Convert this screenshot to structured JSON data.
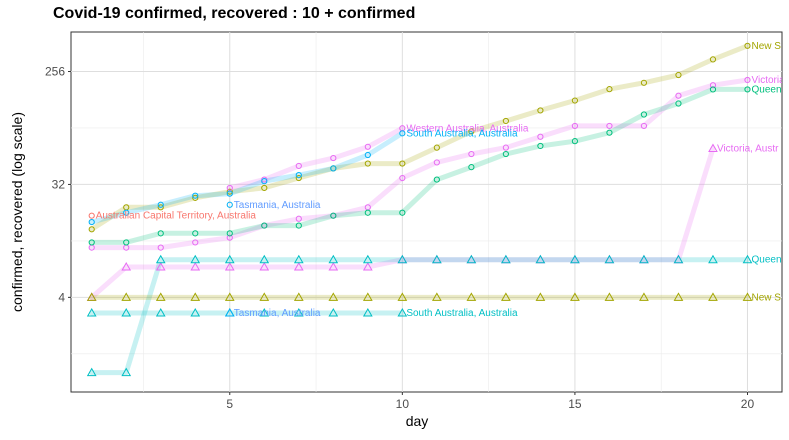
{
  "chart_data": {
    "type": "line",
    "title": "Covid-19 confirmed, recovered : 10 + confirmed",
    "xlabel": "day",
    "ylabel": "confirmed, recovered (log scale)",
    "x_ticks": [
      5,
      10,
      15,
      20
    ],
    "y_ticks": [
      4,
      32,
      256
    ],
    "y_scale": "log2",
    "xlim": [
      0.4,
      21
    ],
    "ylim": [
      0.7,
      530
    ],
    "grid": true,
    "legend": "none",
    "series": [
      {
        "name": "New South Wales, Australia",
        "label": "New S",
        "metric": "confirmed",
        "color": "#A3A500",
        "marker": "circle",
        "x": [
          1,
          2,
          3,
          4,
          5,
          6,
          7,
          8,
          9,
          10,
          11,
          12,
          13,
          14,
          15,
          16,
          17,
          18,
          19,
          20
        ],
        "y": [
          14,
          21,
          21,
          25,
          28,
          30,
          36,
          43,
          47,
          47,
          63,
          85,
          103,
          125,
          150,
          185,
          208,
          240,
          320,
          411
        ]
      },
      {
        "name": "Victoria, Australia",
        "label": "Victoria, Austr",
        "metric": "confirmed",
        "color": "#E76BF3",
        "marker": "circle",
        "x": [
          1,
          2,
          3,
          4,
          5,
          6,
          7,
          8,
          9,
          10,
          11,
          12,
          13,
          14,
          15,
          16,
          17,
          18,
          19,
          20
        ],
        "y": [
          10,
          10,
          10,
          11,
          12,
          15,
          17,
          18,
          21,
          36,
          48,
          56,
          63,
          77,
          94,
          94,
          94,
          164,
          199,
          219
        ]
      },
      {
        "name": "Queensland, Australia",
        "label": "Queen",
        "metric": "confirmed",
        "color": "#00BF7D",
        "marker": "circle",
        "x": [
          1,
          2,
          3,
          4,
          5,
          6,
          7,
          8,
          9,
          10,
          11,
          12,
          13,
          14,
          15,
          16,
          17,
          18,
          19,
          20
        ],
        "y": [
          11,
          11,
          13,
          13,
          13,
          15,
          15,
          18,
          19,
          19,
          35,
          44,
          56,
          65,
          71,
          83,
          116,
          142,
          184,
          184
        ]
      },
      {
        "name": "Western Australia, Australia",
        "label": "Western Australia, Australia",
        "metric": "confirmed",
        "color": "#E76BF3",
        "marker": "circle",
        "x": [
          5,
          6,
          7,
          8,
          9,
          10
        ],
        "y": [
          30,
          35,
          45,
          52,
          64,
          90
        ]
      },
      {
        "name": "South Australia, Australia",
        "label": "South Australia, Australia",
        "metric": "confirmed",
        "color": "#00B0F6",
        "marker": "circle",
        "x": [
          1,
          2,
          3,
          4,
          5,
          6,
          7,
          8,
          9,
          10
        ],
        "y": [
          16,
          19,
          22,
          26,
          27,
          34,
          38,
          43,
          55,
          82
        ]
      },
      {
        "name": "Tasmania, Australia",
        "label": "Tasmania, Australia",
        "metric": "confirmed",
        "color": "#00B0F6",
        "marker": "circle",
        "x": [
          5
        ],
        "y": [
          22
        ]
      },
      {
        "name": "Australian Capital Territory, Australia",
        "label": "Australian Capital Territory, Australia",
        "metric": "confirmed",
        "color": "#F8766D",
        "marker": "circle",
        "x": [
          1
        ],
        "y": [
          18
        ]
      },
      {
        "name": "Victoria, Australia",
        "label": "Victoria, Austr",
        "metric": "recovered",
        "color": "#E76BF3",
        "marker": "triangle",
        "x": [
          1,
          2,
          3,
          4,
          5,
          6,
          7,
          8,
          9,
          10,
          11,
          12,
          13,
          14,
          15,
          16,
          17,
          18,
          19,
          20
        ],
        "y": [
          4,
          7,
          7,
          7,
          7,
          7,
          7,
          7,
          7,
          8,
          8,
          8,
          8,
          8,
          8,
          8,
          8,
          8,
          62,
          null
        ]
      },
      {
        "name": "Queensland, Australia",
        "label": "Queen",
        "metric": "recovered",
        "color": "#00BFC4",
        "marker": "triangle",
        "x": [
          1,
          2,
          3,
          4,
          5,
          6,
          7,
          8,
          9,
          10,
          11,
          12,
          13,
          14,
          15,
          16,
          17,
          18,
          19,
          20
        ],
        "y": [
          1,
          1,
          8,
          8,
          8,
          8,
          8,
          8,
          8,
          8,
          8,
          8,
          8,
          8,
          8,
          8,
          8,
          8,
          8,
          8
        ]
      },
      {
        "name": "New South Wales, Australia",
        "label": "New S",
        "metric": "recovered",
        "color": "#A3A500",
        "marker": "triangle",
        "x": [
          1,
          2,
          3,
          4,
          5,
          6,
          7,
          8,
          9,
          10,
          11,
          12,
          13,
          14,
          15,
          16,
          17,
          18,
          19,
          20
        ],
        "y": [
          4,
          4,
          4,
          4,
          4,
          4,
          4,
          4,
          4,
          4,
          4,
          4,
          4,
          4,
          4,
          4,
          4,
          4,
          4,
          4
        ]
      },
      {
        "name": "South Australia, Australia",
        "label": "South Australia, Australia",
        "metric": "recovered",
        "color": "#00BFC4",
        "marker": "triangle",
        "x": [
          1,
          2,
          3,
          4,
          5,
          6,
          7,
          8,
          9,
          10
        ],
        "y": [
          3,
          3,
          3,
          3,
          3,
          3,
          3,
          3,
          3,
          3
        ]
      },
      {
        "name": "Tasmania, Australia",
        "label": "Tasmania, Australia",
        "metric": "recovered",
        "color": "#00B0F6",
        "marker": "triangle",
        "x": [
          5
        ],
        "y": [
          3
        ]
      }
    ],
    "labels": [
      {
        "text": "New S",
        "x": 20,
        "y": 411,
        "color": "#A3A500"
      },
      {
        "text": "Victoria, Austr",
        "x": 20,
        "y": 219,
        "color": "#E76BF3"
      },
      {
        "text": "Queen",
        "x": 20,
        "y": 184,
        "color": "#00BF7D"
      },
      {
        "text": "Western Australia, Australia",
        "x": 10,
        "y": 90,
        "color": "#E76BF3"
      },
      {
        "text": "South Australia, Australia",
        "x": 10,
        "y": 82,
        "color": "#00B0F6"
      },
      {
        "text": "Victoria, Austr",
        "x": 19,
        "y": 62,
        "color": "#E76BF3"
      },
      {
        "text": "Tasmania, Australia",
        "x": 5,
        "y": 22,
        "color": "#619CFF"
      },
      {
        "text": "Australian Capital Territory, Australia",
        "x": 1,
        "y": 18,
        "color": "#F8766D"
      },
      {
        "text": "Queen",
        "x": 20,
        "y": 8,
        "color": "#00BFC4"
      },
      {
        "text": "New S",
        "x": 20,
        "y": 4,
        "color": "#A3A500"
      },
      {
        "text": "Tasmania, Australia",
        "x": 5,
        "y": 3,
        "color": "#619CFF"
      },
      {
        "text": "South Australia, Australia",
        "x": 10,
        "y": 3,
        "color": "#00BFC4"
      }
    ]
  }
}
